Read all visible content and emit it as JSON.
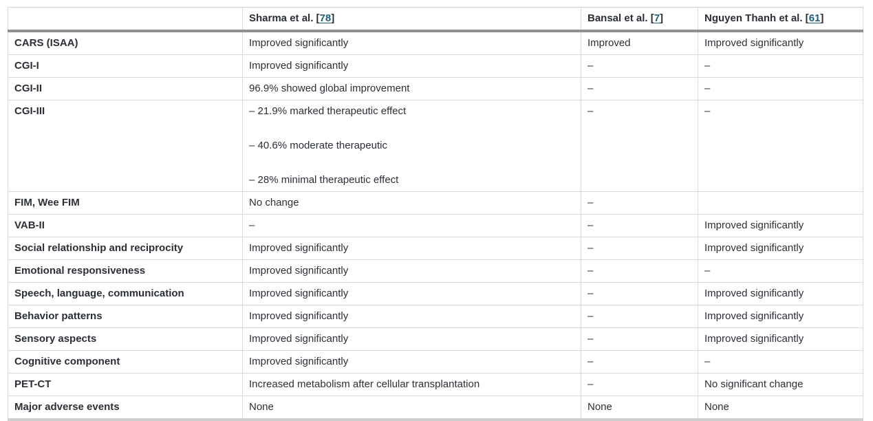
{
  "colors": {
    "text": "#2b2f36",
    "link": "#19607d",
    "grid_line": "#d9d9d9",
    "outer_border": "#cfcfcf",
    "header_separator": "#8f8f8f",
    "bottom_border": "#cfcfcf",
    "background": "#ffffff"
  },
  "table": {
    "corner_header": "",
    "study_columns": [
      {
        "prefix": "Sharma et al. [",
        "ref": "78",
        "suffix": "]"
      },
      {
        "prefix": "Bansal et al. [",
        "ref": "7",
        "suffix": "]"
      },
      {
        "prefix": "Nguyen Thanh et al. [",
        "ref": "61",
        "suffix": "]"
      }
    ],
    "rows": [
      {
        "label": "CARS (ISAA)",
        "cells": [
          [
            "Improved significantly"
          ],
          [
            "Improved"
          ],
          [
            "Improved significantly"
          ]
        ]
      },
      {
        "label": "CGI-I",
        "cells": [
          [
            "Improved significantly"
          ],
          [
            "–"
          ],
          [
            "–"
          ]
        ]
      },
      {
        "label": "CGI-II",
        "cells": [
          [
            "96.9% showed global improvement"
          ],
          [
            "–"
          ],
          [
            "–"
          ]
        ]
      },
      {
        "label": "CGI-III",
        "cells": [
          [
            "– 21.9% marked therapeutic effect",
            "– 40.6% moderate therapeutic",
            "– 28% minimal therapeutic effect"
          ],
          [
            "–"
          ],
          [
            "–"
          ]
        ]
      },
      {
        "label": "FIM, Wee FIM",
        "cells": [
          [
            "No change"
          ],
          [
            "–"
          ],
          []
        ]
      },
      {
        "label": "VAB-II",
        "cells": [
          [
            "–"
          ],
          [
            "–"
          ],
          [
            "Improved significantly"
          ]
        ]
      },
      {
        "label": "Social relationship and reciprocity",
        "cells": [
          [
            "Improved significantly"
          ],
          [
            "–"
          ],
          [
            "Improved significantly"
          ]
        ]
      },
      {
        "label": "Emotional responsiveness",
        "cells": [
          [
            "Improved significantly"
          ],
          [
            "–"
          ],
          [
            "–"
          ]
        ]
      },
      {
        "label": "Speech, language, communication",
        "cells": [
          [
            "Improved significantly"
          ],
          [
            "–"
          ],
          [
            "Improved significantly"
          ]
        ]
      },
      {
        "label": "Behavior patterns",
        "cells": [
          [
            "Improved significantly"
          ],
          [
            "–"
          ],
          [
            "Improved significantly"
          ]
        ]
      },
      {
        "label": "Sensory aspects",
        "cells": [
          [
            "Improved significantly"
          ],
          [
            "–"
          ],
          [
            "Improved significantly"
          ]
        ]
      },
      {
        "label": "Cognitive component",
        "cells": [
          [
            "Improved significantly"
          ],
          [
            "–"
          ],
          [
            "–"
          ]
        ]
      },
      {
        "label": "PET-CT",
        "cells": [
          [
            "Increased metabolism after cellular transplantation"
          ],
          [
            "–"
          ],
          [
            "No significant change"
          ]
        ]
      },
      {
        "label": "Major adverse events",
        "cells": [
          [
            "None"
          ],
          [
            "None"
          ],
          [
            "None"
          ]
        ]
      }
    ]
  }
}
